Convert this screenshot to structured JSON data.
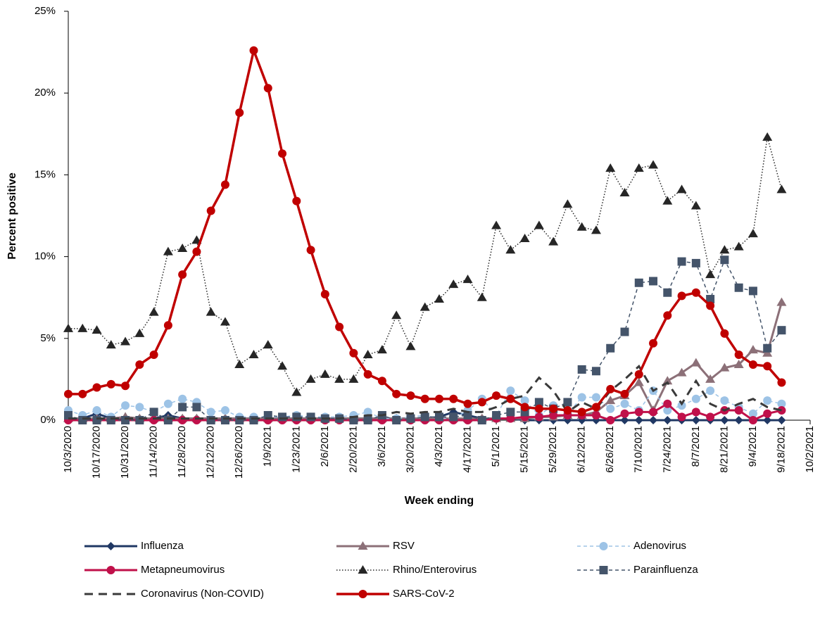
{
  "chart_data": {
    "type": "line",
    "x_label": "Week ending",
    "y_label": "Percent positive",
    "x": [
      "10/3/2020",
      "10/10/2020",
      "10/17/2020",
      "10/24/2020",
      "10/31/2020",
      "11/7/2020",
      "11/14/2020",
      "11/21/2020",
      "11/28/2020",
      "12/5/2020",
      "12/12/2020",
      "12/19/2020",
      "12/26/2020",
      "1/2/2021",
      "1/9/2021",
      "1/16/2021",
      "1/23/2021",
      "1/30/2021",
      "2/6/2021",
      "2/13/2021",
      "2/20/2021",
      "2/27/2021",
      "3/6/2021",
      "3/13/2021",
      "3/20/2021",
      "3/27/2021",
      "4/3/2021",
      "4/10/2021",
      "4/17/2021",
      "4/24/2021",
      "5/1/2021",
      "5/8/2021",
      "5/15/2021",
      "5/22/2021",
      "5/29/2021",
      "6/5/2021",
      "6/12/2021",
      "6/19/2021",
      "6/26/2021",
      "7/3/2021",
      "7/10/2021",
      "7/17/2021",
      "7/24/2021",
      "7/31/2021",
      "8/7/2021",
      "8/14/2021",
      "8/21/2021",
      "8/28/2021",
      "9/4/2021",
      "9/11/2021",
      "9/18/2021"
    ],
    "xlim": [
      "10/3/2020",
      "10/2/2021"
    ],
    "xticks": [
      "10/3/2020",
      "10/17/2020",
      "10/31/2020",
      "11/14/2020",
      "11/28/2020",
      "12/12/2020",
      "12/26/2020",
      "1/9/2021",
      "1/23/2021",
      "2/6/2021",
      "2/20/2021",
      "3/6/2021",
      "3/20/2021",
      "4/3/2021",
      "4/17/2021",
      "5/1/2021",
      "5/15/2021",
      "5/29/2021",
      "6/12/2021",
      "6/26/2021",
      "7/10/2021",
      "7/24/2021",
      "8/7/2021",
      "8/21/2021",
      "9/4/2021",
      "9/18/2021",
      "10/2/2021"
    ],
    "ylim": [
      0,
      25
    ],
    "yticks": [
      {
        "value": 0,
        "label": "0%"
      },
      {
        "value": 5,
        "label": "5%"
      },
      {
        "value": 10,
        "label": "10%"
      },
      {
        "value": 15,
        "label": "15%"
      },
      {
        "value": 20,
        "label": "20%"
      },
      {
        "value": 25,
        "label": "25%"
      }
    ],
    "series": [
      {
        "name": "Influenza",
        "color": "#203864",
        "marker": "diamond",
        "line_style": "solid",
        "values": [
          0.1,
          0.1,
          0.4,
          0.1,
          0.1,
          0.1,
          0.1,
          0.3,
          0.1,
          0.1,
          0.1,
          0.1,
          0.1,
          0.1,
          0.1,
          0.1,
          0.1,
          0.1,
          0.1,
          0.1,
          0.1,
          0.1,
          0.1,
          0.1,
          0.1,
          0.1,
          0.2,
          0.5,
          0.3,
          0.1,
          0.1,
          0.1,
          0,
          0,
          0,
          0,
          0,
          0,
          0,
          0,
          0,
          0,
          0,
          0,
          0,
          0,
          0,
          0,
          0,
          0,
          0
        ]
      },
      {
        "name": "RSV",
        "color": "#8c7078",
        "marker": "triangle",
        "line_style": "solid",
        "values": [
          0.1,
          0.1,
          0.1,
          0.1,
          0.2,
          0.1,
          0.1,
          0.1,
          0.1,
          0.1,
          0.1,
          0.1,
          0.1,
          0.1,
          0.1,
          0.1,
          0.1,
          0.1,
          0.1,
          0.1,
          0.1,
          0.1,
          0.1,
          0.1,
          0.1,
          0.1,
          0.1,
          0.1,
          0.1,
          0.1,
          0.1,
          0.1,
          0.1,
          0.2,
          0.2,
          0.3,
          0.3,
          0.5,
          1.2,
          1.5,
          2.3,
          0.6,
          2.4,
          2.9,
          3.5,
          2.5,
          3.2,
          3.4,
          4.3,
          4.1,
          7.2
        ]
      },
      {
        "name": "Adenovirus",
        "color": "#9dc3e6",
        "marker": "circle",
        "line_style": "dashed",
        "values": [
          0.6,
          0.3,
          0.6,
          0.2,
          0.9,
          0.8,
          0.5,
          1.0,
          1.3,
          1.1,
          0.5,
          0.6,
          0.2,
          0.2,
          0.2,
          0.2,
          0.3,
          0.2,
          0.2,
          0.2,
          0.3,
          0.5,
          0.1,
          0.1,
          0.2,
          0.3,
          0.1,
          0.1,
          0.6,
          1.3,
          0.3,
          1.8,
          1.2,
          0.3,
          0.9,
          0.4,
          1.4,
          1.4,
          0.7,
          1.0,
          0.6,
          1.8,
          0.6,
          0.9,
          1.3,
          1.8,
          1.2,
          0.8,
          0.4,
          1.2,
          1.0
        ]
      },
      {
        "name": "Metapneumovirus",
        "color": "#c0104a",
        "marker": "circle",
        "line_style": "solid",
        "values": [
          0,
          0,
          0,
          0,
          0,
          0,
          0,
          0,
          0,
          0,
          0,
          0,
          0,
          0,
          0,
          0,
          0,
          0,
          0,
          0,
          0,
          0,
          0,
          0,
          0,
          0,
          0,
          0,
          0,
          0,
          0.1,
          0.1,
          0.2,
          0.2,
          0.3,
          0.3,
          0.3,
          0.3,
          0,
          0.4,
          0.5,
          0.5,
          1.0,
          0.2,
          0.5,
          0.2,
          0.6,
          0.6,
          0,
          0.4,
          0.6
        ]
      },
      {
        "name": "Rhino/Enterovirus",
        "color": "#262626",
        "marker": "triangle",
        "line_style": "dotted",
        "values": [
          5.6,
          5.6,
          5.5,
          4.6,
          4.8,
          5.3,
          6.6,
          10.3,
          10.5,
          11.0,
          6.6,
          6.0,
          3.4,
          4.0,
          4.6,
          3.3,
          1.7,
          2.5,
          2.8,
          2.5,
          2.5,
          4.0,
          4.3,
          6.4,
          4.5,
          6.9,
          7.4,
          8.3,
          8.6,
          7.5,
          11.9,
          10.4,
          11.1,
          11.9,
          10.9,
          13.2,
          11.8,
          11.6,
          15.4,
          13.9,
          15.4,
          15.6,
          13.4,
          14.1,
          13.1,
          8.9,
          10.4,
          10.6,
          11.4,
          17.3,
          14.1
        ]
      },
      {
        "name": "Parainfluenza",
        "color": "#44546a",
        "marker": "square",
        "line_style": "dashed",
        "values": [
          0.3,
          0,
          0,
          0,
          0,
          0,
          0.5,
          0,
          0.8,
          0.8,
          0,
          0,
          0,
          0,
          0.3,
          0.2,
          0.2,
          0.2,
          0.1,
          0.1,
          0,
          0,
          0.3,
          0,
          0.1,
          0.2,
          0.2,
          0.2,
          0.3,
          0,
          0.3,
          0.5,
          0.5,
          1.1,
          0.7,
          1.1,
          3.1,
          3.0,
          4.4,
          5.4,
          8.4,
          8.5,
          7.8,
          9.7,
          9.6,
          7.4,
          9.8,
          8.1,
          7.9,
          4.4,
          5.5
        ]
      },
      {
        "name": "Coronavirus (Non-COVID)",
        "color": "#3a3a3a",
        "marker": "none",
        "line_style": "longdash",
        "values": [
          0.1,
          0.1,
          0.1,
          0.1,
          0.1,
          0.1,
          0.1,
          0.1,
          0.1,
          0.1,
          0.1,
          0.1,
          0.1,
          0.1,
          0.1,
          0.1,
          0.1,
          0.1,
          0.1,
          0.1,
          0.2,
          0.3,
          0.3,
          0.5,
          0.4,
          0.5,
          0.5,
          0.7,
          0.5,
          0.5,
          0.8,
          1.3,
          1.5,
          2.6,
          1.8,
          0.5,
          1.1,
          0.7,
          1.8,
          2.5,
          3.3,
          1.8,
          2.3,
          1.0,
          2.4,
          1.0,
          0.6,
          1.0,
          1.3,
          0.8,
          0.6
        ]
      },
      {
        "name": "SARS-CoV-2",
        "color": "#c00000",
        "marker": "circle",
        "line_style": "thick",
        "values": [
          1.6,
          1.6,
          2.0,
          2.2,
          2.1,
          3.4,
          4.0,
          5.8,
          8.9,
          10.3,
          12.8,
          14.4,
          18.8,
          22.6,
          20.3,
          16.3,
          13.4,
          10.4,
          7.7,
          5.7,
          4.1,
          2.8,
          2.4,
          1.6,
          1.5,
          1.3,
          1.3,
          1.3,
          1.0,
          1.1,
          1.5,
          1.3,
          0.8,
          0.7,
          0.7,
          0.6,
          0.5,
          0.8,
          1.9,
          1.6,
          2.8,
          4.7,
          6.4,
          7.6,
          7.8,
          7.0,
          5.3,
          4.0,
          3.4,
          3.3,
          2.3
        ]
      }
    ]
  }
}
